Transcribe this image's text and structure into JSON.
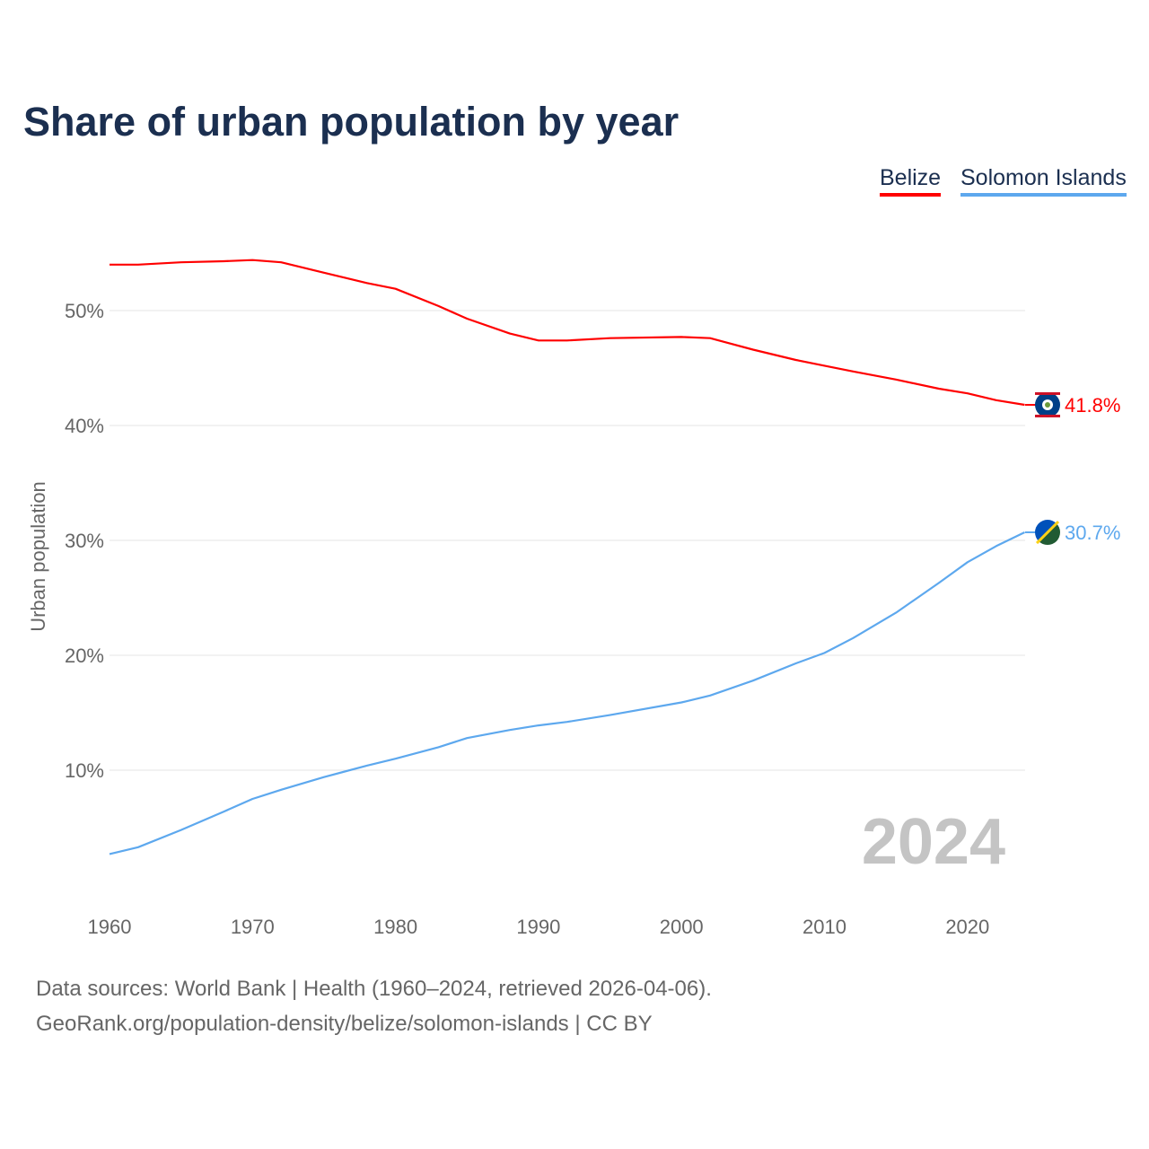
{
  "title": "Share of urban population by year",
  "legend": [
    "Belize",
    "Solomon Islands"
  ],
  "year_watermark": "2024",
  "footer": {
    "line1": "Data sources: World Bank | Health (1960–2024, retrieved 2026-04-06).",
    "line2": "GeoRank.org/population-density/belize/solomon-islands | CC BY"
  },
  "chart_data": {
    "type": "line",
    "title": "Share of urban population by year",
    "xlabel": "",
    "ylabel": "Urban population",
    "xlim": [
      1960,
      2024
    ],
    "ylim": [
      0,
      55
    ],
    "x_ticks": [
      1960,
      1970,
      1980,
      1990,
      2000,
      2010,
      2020
    ],
    "x_tick_labels": [
      "1960",
      "1970",
      "1980",
      "1990",
      "2000",
      "2010",
      "2020"
    ],
    "y_ticks": [
      10,
      20,
      30,
      40,
      50
    ],
    "y_tick_labels": [
      "10%",
      "20%",
      "30%",
      "40%",
      "50%"
    ],
    "grid": true,
    "legend_position": "top-right",
    "x": [
      1960,
      1962,
      1965,
      1968,
      1970,
      1972,
      1975,
      1978,
      1980,
      1983,
      1985,
      1988,
      1990,
      1992,
      1995,
      2000,
      2002,
      2005,
      2008,
      2010,
      2012,
      2015,
      2018,
      2020,
      2022,
      2024
    ],
    "series": [
      {
        "name": "Belize",
        "color": "#ff0000",
        "end_label": "41.8%",
        "values": [
          54.0,
          54.0,
          54.2,
          54.3,
          54.4,
          54.2,
          53.3,
          52.4,
          51.9,
          50.4,
          49.3,
          48.0,
          47.4,
          47.4,
          47.6,
          47.7,
          47.6,
          46.6,
          45.7,
          45.2,
          44.7,
          44.0,
          43.2,
          42.8,
          42.2,
          41.8
        ]
      },
      {
        "name": "Solomon Islands",
        "color": "#5da8ee",
        "end_label": "30.7%",
        "values": [
          2.7,
          3.3,
          4.8,
          6.4,
          7.5,
          8.3,
          9.4,
          10.4,
          11.0,
          12.0,
          12.8,
          13.5,
          13.9,
          14.2,
          14.8,
          15.9,
          16.5,
          17.8,
          19.3,
          20.2,
          21.5,
          23.7,
          26.3,
          28.1,
          29.5,
          30.7
        ]
      }
    ]
  }
}
